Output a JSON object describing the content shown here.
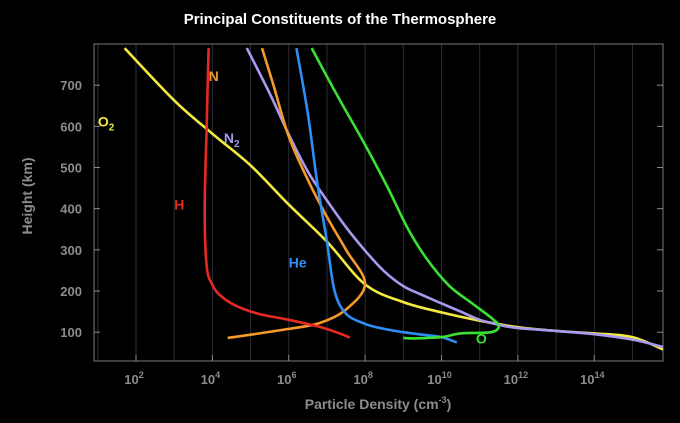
{
  "chart_data": {
    "type": "line",
    "title": "Principal Constituents of the Thermosphere",
    "xlabel": "Particle Density (cm",
    "xlabel_exponent": "-3",
    "xlabel_suffix": ")",
    "ylabel": "Height (km)",
    "x_scale": "log",
    "xlim_log10": [
      0.9,
      15.8
    ],
    "ylim": [
      30,
      800
    ],
    "grid": "vertical lines at each decade",
    "yticks": [
      {
        "value": 100,
        "label": "100"
      },
      {
        "value": 200,
        "label": "200"
      },
      {
        "value": 300,
        "label": "300"
      },
      {
        "value": 400,
        "label": "400"
      },
      {
        "value": 500,
        "label": "500"
      },
      {
        "value": 600,
        "label": "600"
      },
      {
        "value": 700,
        "label": "700"
      }
    ],
    "xticks": [
      {
        "value": 2,
        "base": "10",
        "exp": "2"
      },
      {
        "value": 4,
        "base": "10",
        "exp": "4"
      },
      {
        "value": 6,
        "base": "10",
        "exp": "6"
      },
      {
        "value": 8,
        "base": "10",
        "exp": "8"
      },
      {
        "value": 10,
        "base": "10",
        "exp": "10"
      },
      {
        "value": 12,
        "base": "10",
        "exp": "12"
      },
      {
        "value": 14,
        "base": "10",
        "exp": "14"
      }
    ],
    "series": [
      {
        "key": "O2",
        "name": "O",
        "name_sub": "2",
        "color": "#f2ea40",
        "label_at": {
          "x": 1.0,
          "y": 600
        },
        "points": [
          [
            1.7,
            790
          ],
          [
            3.0,
            663
          ],
          [
            4.0,
            582
          ],
          [
            5.0,
            505
          ],
          [
            6.0,
            410
          ],
          [
            7.0,
            320
          ],
          [
            8.0,
            216
          ],
          [
            9.0,
            173
          ],
          [
            10.0,
            148
          ],
          [
            11.0,
            128
          ],
          [
            12.0,
            112
          ],
          [
            13.0,
            103
          ],
          [
            14.0,
            97
          ],
          [
            15.0,
            88
          ],
          [
            15.8,
            58
          ]
        ]
      },
      {
        "key": "N2",
        "name": "N",
        "name_sub": "2",
        "color": "#a898ee",
        "label_at": {
          "x": 4.3,
          "y": 560
        },
        "points": [
          [
            4.9,
            790
          ],
          [
            5.5,
            680
          ],
          [
            6.0,
            580
          ],
          [
            6.5,
            490
          ],
          [
            7.0,
            420
          ],
          [
            7.5,
            355
          ],
          [
            8.0,
            298
          ],
          [
            8.5,
            248
          ],
          [
            9.0,
            212
          ],
          [
            9.5,
            190
          ],
          [
            10.0,
            170
          ],
          [
            10.5,
            150
          ],
          [
            11.0,
            130
          ],
          [
            11.5,
            118
          ],
          [
            12.0,
            110
          ],
          [
            13.0,
            103
          ],
          [
            14.0,
            95
          ],
          [
            15.0,
            82
          ],
          [
            15.8,
            64
          ]
        ]
      },
      {
        "key": "N",
        "name": "N",
        "name_sub": "",
        "color": "#f5992a",
        "label_at": {
          "x": 3.9,
          "y": 710
        },
        "points": [
          [
            5.3,
            790
          ],
          [
            5.6,
            700
          ],
          [
            6.0,
            575
          ],
          [
            6.5,
            470
          ],
          [
            7.0,
            380
          ],
          [
            7.5,
            300
          ],
          [
            8.0,
            218
          ],
          [
            7.5,
            155
          ],
          [
            6.8,
            122
          ],
          [
            6.0,
            108
          ],
          [
            5.0,
            94
          ],
          [
            4.4,
            86
          ]
        ]
      },
      {
        "key": "He",
        "name": "He",
        "name_sub": "",
        "color": "#2f8ef5",
        "label_at": {
          "x": 6.0,
          "y": 257
        },
        "points": [
          [
            6.2,
            790
          ],
          [
            6.5,
            630
          ],
          [
            6.75,
            460
          ],
          [
            7.0,
            320
          ],
          [
            7.2,
            200
          ],
          [
            7.5,
            145
          ],
          [
            8.0,
            120
          ],
          [
            8.5,
            108
          ],
          [
            9.0,
            100
          ],
          [
            9.5,
            94
          ],
          [
            10.0,
            88
          ],
          [
            10.4,
            75
          ]
        ]
      },
      {
        "key": "O",
        "name": "O",
        "name_sub": "",
        "color": "#3be034",
        "label_at": {
          "x": 10.9,
          "y": 72
        },
        "points": [
          [
            6.6,
            790
          ],
          [
            7.3,
            670
          ],
          [
            8.0,
            555
          ],
          [
            8.6,
            450
          ],
          [
            9.1,
            355
          ],
          [
            9.6,
            280
          ],
          [
            10.2,
            213
          ],
          [
            10.8,
            170
          ],
          [
            11.3,
            135
          ],
          [
            11.5,
            115
          ],
          [
            11.3,
            100
          ],
          [
            10.5,
            97
          ],
          [
            10.0,
            88
          ],
          [
            9.3,
            85
          ],
          [
            9.0,
            86
          ]
        ]
      },
      {
        "key": "H",
        "name": "H",
        "name_sub": "",
        "color": "#e52a24",
        "label_at": {
          "x": 3.0,
          "y": 398
        },
        "points": [
          [
            3.9,
            790
          ],
          [
            3.85,
            600
          ],
          [
            3.8,
            400
          ],
          [
            3.85,
            260
          ],
          [
            4.0,
            215
          ],
          [
            4.2,
            190
          ],
          [
            4.6,
            165
          ],
          [
            5.2,
            145
          ],
          [
            6.0,
            130
          ],
          [
            6.8,
            113
          ],
          [
            7.3,
            98
          ],
          [
            7.6,
            87
          ]
        ]
      }
    ]
  }
}
